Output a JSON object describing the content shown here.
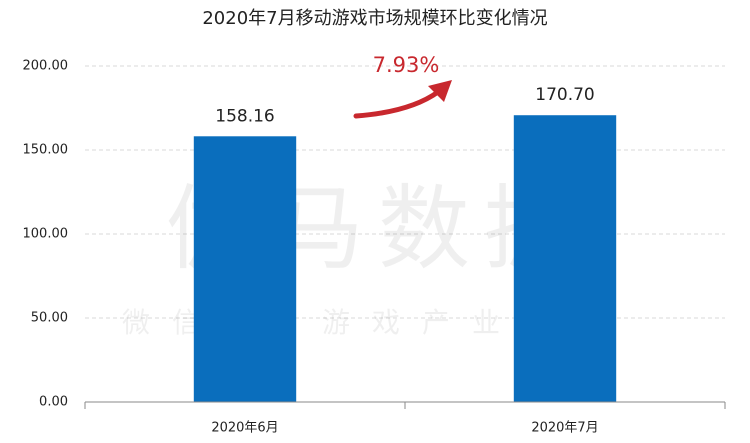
{
  "chart_data": {
    "type": "bar",
    "title": "2020年7月移动游戏市场规模环比变化情况",
    "categories": [
      "2020年6月",
      "2020年7月"
    ],
    "values": [
      158.16,
      170.7
    ],
    "value_labels": [
      "158.16",
      "170.70"
    ],
    "color": "#0a6ebd",
    "ylim": [
      0,
      200
    ],
    "yticks": [
      {
        "value": 0,
        "label": "0.00"
      },
      {
        "value": 50,
        "label": "50.00"
      },
      {
        "value": 100,
        "label": "100.00"
      },
      {
        "value": 150,
        "label": "150.00"
      },
      {
        "value": 200,
        "label": "200.00"
      }
    ],
    "grid": true,
    "annotation": "7.93%",
    "watermark": "伽马数据",
    "watermark_subtitle": "微信号：游戏产业报告"
  }
}
